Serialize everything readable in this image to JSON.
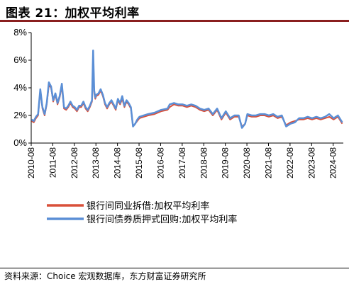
{
  "header": {
    "title": "图表 21：加权平均利率"
  },
  "footer": {
    "source": "资料来源：Choice 宏观数据库，东方财富证券研究所"
  },
  "chart_data": {
    "type": "line",
    "title": "图表 21：加权平均利率",
    "xlabel": "",
    "ylabel": "",
    "ylim": [
      0,
      8
    ],
    "yticks": [
      "0%",
      "2%",
      "4%",
      "6%",
      "8%"
    ],
    "xticks": [
      "2010-08",
      "2011-08",
      "2012-08",
      "2013-08",
      "2014-08",
      "2015-08",
      "2016-08",
      "2017-08",
      "2018-08",
      "2019-08",
      "2020-08",
      "2021-08",
      "2022-08",
      "2023-08",
      "2024-08"
    ],
    "grid": false,
    "legend_position": "bottom",
    "x_unit": "year-fraction",
    "series": [
      {
        "name": "银行间同业拆借:加权平均利率",
        "color": "#d9503a",
        "x": [
          2010.6,
          2010.7,
          2010.8,
          2010.9,
          2011.0,
          2011.1,
          2011.2,
          2011.3,
          2011.4,
          2011.5,
          2011.6,
          2011.7,
          2011.8,
          2011.9,
          2012.0,
          2012.1,
          2012.2,
          2012.3,
          2012.4,
          2012.5,
          2012.6,
          2012.7,
          2012.8,
          2012.9,
          2013.0,
          2013.1,
          2013.2,
          2013.3,
          2013.4,
          2013.45,
          2013.5,
          2013.55,
          2013.6,
          2013.7,
          2013.8,
          2013.9,
          2014.0,
          2014.1,
          2014.2,
          2014.3,
          2014.4,
          2014.5,
          2014.6,
          2014.7,
          2014.8,
          2014.9,
          2015.0,
          2015.1,
          2015.2,
          2015.3,
          2015.4,
          2015.5,
          2015.6,
          2015.8,
          2016.0,
          2016.3,
          2016.6,
          2016.9,
          2017.0,
          2017.2,
          2017.4,
          2017.6,
          2017.8,
          2018.0,
          2018.2,
          2018.4,
          2018.6,
          2018.8,
          2019.0,
          2019.2,
          2019.4,
          2019.6,
          2019.8,
          2020.0,
          2020.2,
          2020.35,
          2020.5,
          2020.6,
          2020.8,
          2021.0,
          2021.2,
          2021.4,
          2021.6,
          2021.8,
          2022.0,
          2022.2,
          2022.4,
          2022.6,
          2022.8,
          2023.0,
          2023.2,
          2023.4,
          2023.6,
          2023.8,
          2024.0,
          2024.2,
          2024.4,
          2024.6,
          2024.8,
          2025.0
        ],
        "y": [
          1.6,
          1.5,
          1.8,
          2.0,
          3.8,
          2.5,
          2.0,
          2.8,
          4.2,
          4.0,
          3.0,
          3.5,
          2.8,
          3.3,
          4.1,
          2.5,
          2.4,
          2.6,
          2.9,
          2.6,
          2.5,
          2.3,
          2.6,
          2.6,
          2.9,
          2.5,
          2.3,
          2.6,
          3.0,
          6.5,
          3.6,
          3.2,
          3.4,
          3.5,
          3.8,
          3.4,
          2.8,
          2.5,
          2.8,
          3.0,
          2.7,
          2.4,
          3.1,
          2.8,
          3.2,
          2.6,
          3.0,
          2.8,
          2.5,
          1.2,
          1.4,
          1.6,
          1.8,
          1.9,
          2.0,
          2.1,
          2.3,
          2.4,
          2.6,
          2.8,
          2.7,
          2.7,
          2.6,
          2.7,
          2.6,
          2.4,
          2.3,
          2.4,
          2.0,
          2.4,
          1.7,
          2.2,
          1.7,
          1.9,
          1.9,
          1.2,
          1.4,
          2.0,
          1.9,
          1.9,
          2.0,
          2.0,
          1.9,
          2.0,
          1.8,
          1.9,
          1.3,
          1.5,
          1.6,
          1.7,
          1.7,
          1.8,
          1.7,
          1.8,
          1.7,
          1.8,
          1.9,
          1.7,
          1.9,
          1.4
        ]
      },
      {
        "name": "银行间债券质押式回购:加权平均利率",
        "color": "#5b8fd6",
        "x": [
          2010.6,
          2010.7,
          2010.8,
          2010.9,
          2011.0,
          2011.1,
          2011.2,
          2011.3,
          2011.4,
          2011.5,
          2011.6,
          2011.7,
          2011.8,
          2011.9,
          2012.0,
          2012.1,
          2012.2,
          2012.3,
          2012.4,
          2012.5,
          2012.6,
          2012.7,
          2012.8,
          2012.9,
          2013.0,
          2013.1,
          2013.2,
          2013.3,
          2013.4,
          2013.45,
          2013.5,
          2013.55,
          2013.6,
          2013.7,
          2013.8,
          2013.9,
          2014.0,
          2014.1,
          2014.2,
          2014.3,
          2014.4,
          2014.5,
          2014.6,
          2014.7,
          2014.8,
          2014.9,
          2015.0,
          2015.1,
          2015.2,
          2015.3,
          2015.4,
          2015.5,
          2015.6,
          2015.8,
          2016.0,
          2016.3,
          2016.6,
          2016.9,
          2017.0,
          2017.2,
          2017.4,
          2017.6,
          2017.8,
          2018.0,
          2018.2,
          2018.4,
          2018.6,
          2018.8,
          2019.0,
          2019.2,
          2019.4,
          2019.6,
          2019.8,
          2020.0,
          2020.2,
          2020.35,
          2020.5,
          2020.6,
          2020.8,
          2021.0,
          2021.2,
          2021.4,
          2021.6,
          2021.8,
          2022.0,
          2022.2,
          2022.4,
          2022.6,
          2022.8,
          2023.0,
          2023.2,
          2023.4,
          2023.6,
          2023.8,
          2024.0,
          2024.2,
          2024.4,
          2024.6,
          2024.8,
          2025.0
        ],
        "y": [
          1.7,
          1.6,
          1.9,
          2.1,
          3.9,
          2.6,
          2.1,
          2.9,
          4.4,
          4.1,
          3.1,
          3.6,
          2.9,
          3.4,
          4.3,
          2.6,
          2.5,
          2.7,
          3.0,
          2.7,
          2.6,
          2.4,
          2.7,
          2.7,
          3.0,
          2.6,
          2.4,
          2.7,
          3.1,
          6.7,
          3.8,
          3.3,
          3.5,
          3.6,
          3.9,
          3.5,
          2.9,
          2.6,
          2.9,
          3.1,
          2.8,
          2.5,
          3.2,
          2.9,
          3.4,
          2.7,
          3.1,
          2.9,
          2.6,
          1.2,
          1.4,
          1.7,
          1.9,
          2.0,
          2.1,
          2.2,
          2.4,
          2.5,
          2.8,
          2.9,
          2.8,
          2.8,
          2.7,
          2.8,
          2.7,
          2.5,
          2.4,
          2.5,
          2.1,
          2.5,
          1.8,
          2.3,
          1.8,
          2.0,
          2.0,
          1.1,
          1.4,
          2.1,
          2.0,
          2.0,
          2.1,
          2.1,
          2.0,
          2.1,
          1.9,
          2.0,
          1.2,
          1.4,
          1.5,
          1.8,
          1.8,
          1.9,
          1.8,
          1.9,
          1.8,
          1.9,
          2.1,
          1.8,
          2.0,
          1.5
        ]
      }
    ]
  }
}
